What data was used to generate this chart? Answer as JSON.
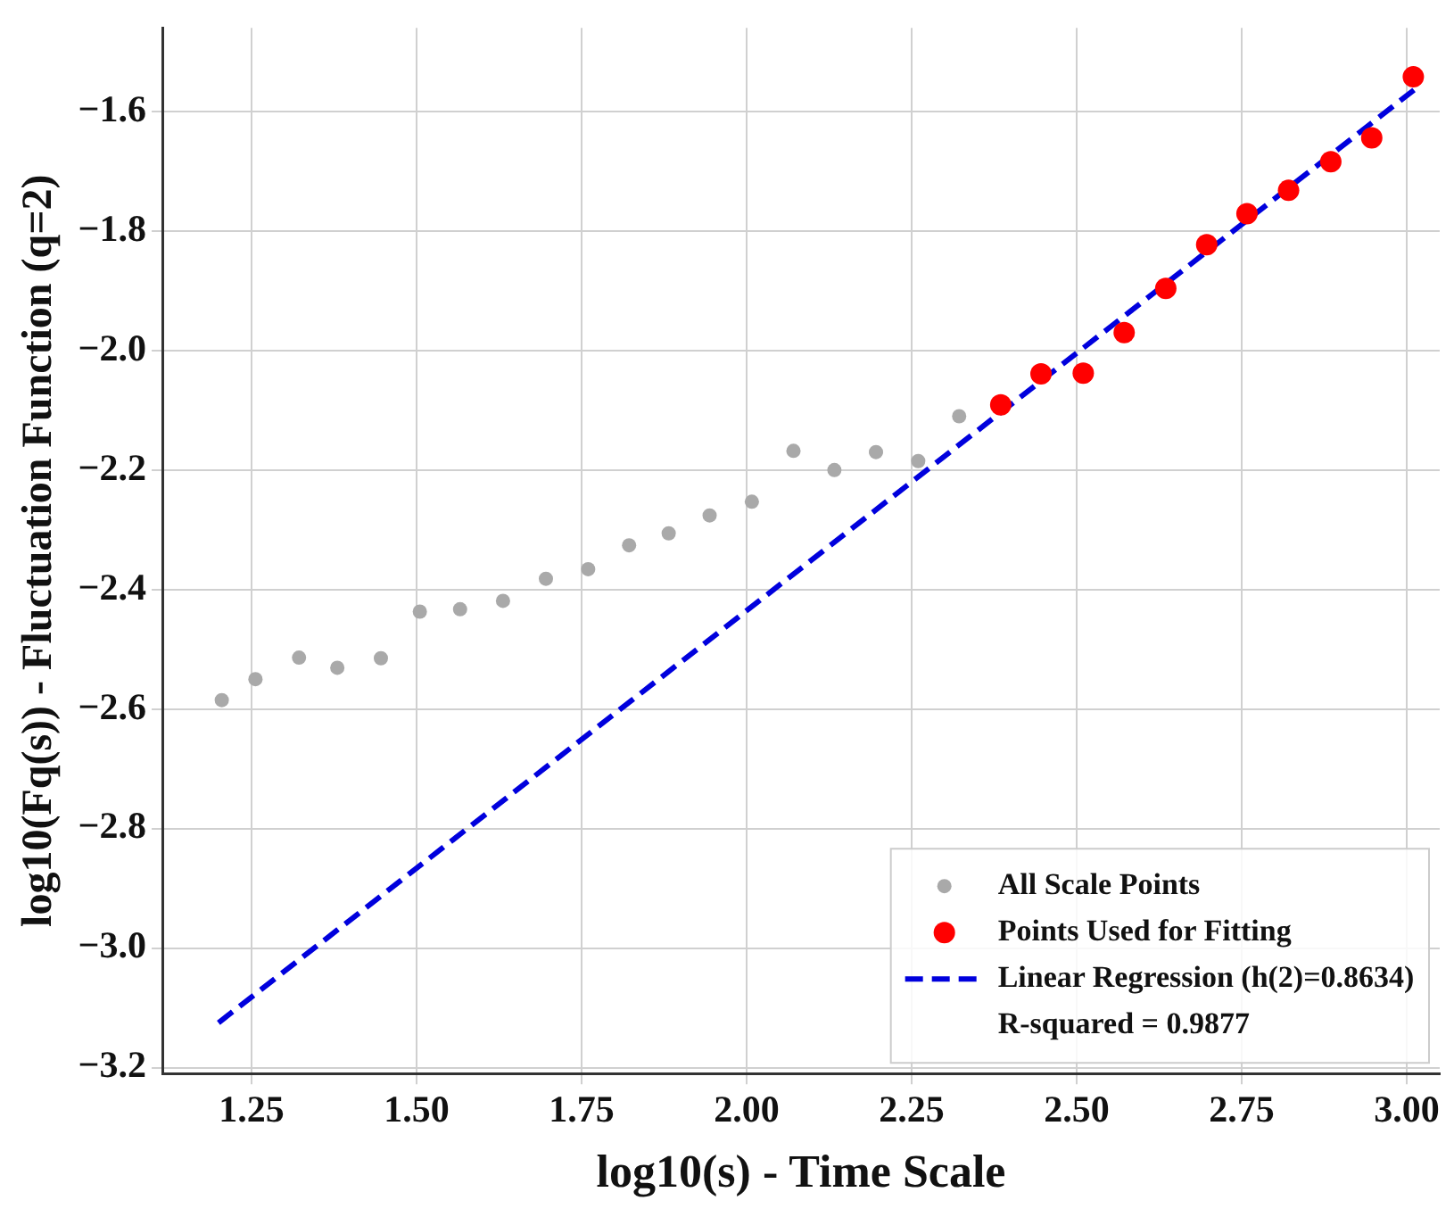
{
  "chart_data": {
    "type": "scatter",
    "xlabel": "log10(s) - Time Scale",
    "ylabel": "log10(Fq(s)) - Fluctuation Function (q=2)",
    "xlim": [
      1.115,
      3.05
    ],
    "ylim": [
      -3.21,
      -1.46
    ],
    "xticks": [
      1.25,
      {
        "value": 1.5,
        "label": "1.50"
      },
      1.75,
      {
        "value": 2,
        "label": "2.00"
      },
      2.25,
      {
        "value": 2.5,
        "label": "2.50"
      },
      2.75,
      {
        "value": 3,
        "label": "3.00"
      }
    ],
    "yticks": [
      {
        "value": -3.2,
        "label": "−3.2"
      },
      {
        "value": -3,
        "label": "−3.0"
      },
      {
        "value": -2.8,
        "label": "−2.8"
      },
      {
        "value": -2.6,
        "label": "−2.6"
      },
      {
        "value": -2.4,
        "label": "−2.4"
      },
      {
        "value": -2.2,
        "label": "−2.2"
      },
      {
        "value": -2,
        "label": "−2.0"
      },
      {
        "value": -1.8,
        "label": "−1.8"
      },
      {
        "value": -1.6,
        "label": "−1.6"
      }
    ],
    "grid": true,
    "legend": "bottom right",
    "series": [
      {
        "name": "All Scale Points",
        "marker": "circle",
        "color": "#a9a9a9",
        "x": [
          1.205,
          1.256,
          1.322,
          1.38,
          1.446,
          1.505,
          1.566,
          1.631,
          1.696,
          1.76,
          1.822,
          1.882,
          1.944,
          2.008,
          2.071,
          2.133,
          2.196,
          2.26,
          2.322
        ],
        "values": [
          -2.585,
          -2.55,
          -2.514,
          -2.531,
          -2.515,
          -2.437,
          -2.433,
          -2.419,
          -2.382,
          -2.366,
          -2.326,
          -2.306,
          -2.276,
          -2.253,
          -2.168,
          -2.2,
          -2.17,
          -2.185,
          -2.11
        ]
      },
      {
        "name": "Points Used for Fitting",
        "marker": "circle",
        "color": "#ff0000",
        "x": [
          2.385,
          2.446,
          2.51,
          2.572,
          2.635,
          2.697,
          2.758,
          2.821,
          2.885,
          2.947,
          3.01
        ],
        "values": [
          -2.091,
          -2.039,
          -2.038,
          -1.97,
          -1.896,
          -1.823,
          -1.771,
          -1.732,
          -1.684,
          -1.644,
          -1.542
        ]
      },
      {
        "name": "Linear Regression (h(2)=0.8634)",
        "type": "line",
        "marker": "none",
        "line_style": "dashed",
        "color": "#0000dd",
        "x": [
          1.2,
          3.011
        ],
        "values": [
          -3.125,
          -1.564
        ]
      }
    ],
    "annotations": [
      "R-squared = 0.9877"
    ]
  }
}
